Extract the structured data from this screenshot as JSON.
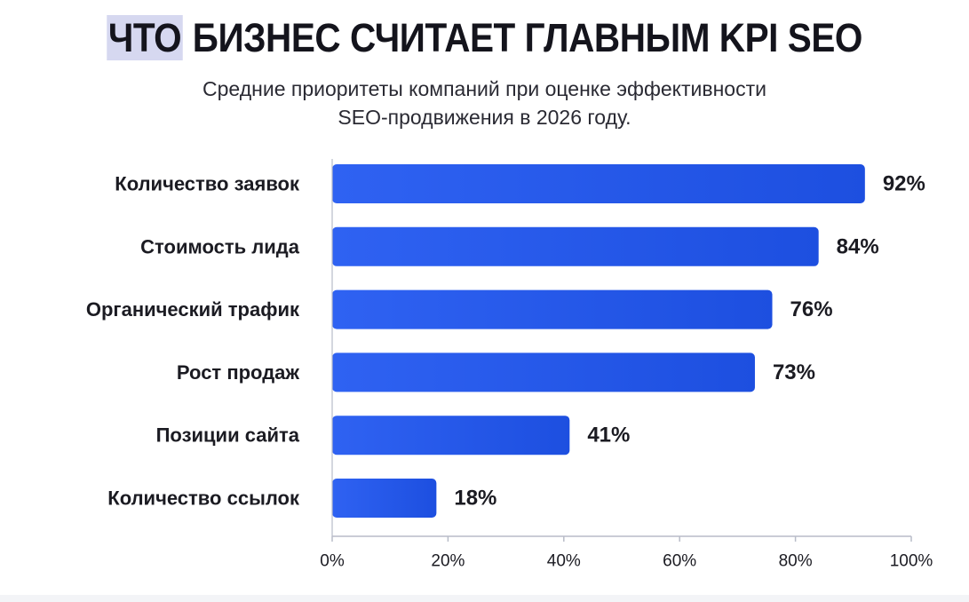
{
  "title": {
    "highlight": "ЧТО",
    "rest": " БИЗНЕС СЧИТАЕТ ГЛАВНЫМ KPI SEO"
  },
  "subtitle": {
    "line1": "Средние приоритеты компаний при оценке эффективности",
    "line2": "SEO-продвижения в 2026 году."
  },
  "colors": {
    "bar_gradient_start": "#2f62f2",
    "bar_gradient_end": "#1d4fe0",
    "axis": "#b8bcc8",
    "text": "#1b1b22"
  },
  "chart_data": {
    "type": "bar",
    "orientation": "horizontal",
    "categories": [
      "Количество заявок",
      "Стоимость лида",
      "Органический трафик",
      "Рост продаж",
      "Позиции сайта",
      "Количество ссылок"
    ],
    "values": [
      92,
      84,
      76,
      73,
      41,
      18
    ],
    "value_labels": [
      "92%",
      "84%",
      "76%",
      "73%",
      "41%",
      "18%"
    ],
    "xlim": [
      0,
      100
    ],
    "x_ticks": [
      0,
      20,
      40,
      60,
      80,
      100
    ],
    "x_tick_labels": [
      "0%",
      "20%",
      "40%",
      "60%",
      "80%",
      "100%"
    ],
    "grid": false,
    "legend": "none"
  }
}
